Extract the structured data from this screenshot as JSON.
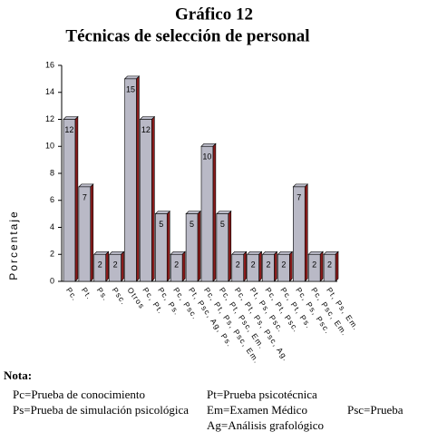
{
  "chart_data": {
    "type": "bar",
    "title": "Gráfico 12",
    "subtitle": "Técnicas de selección de personal",
    "y_label": "Porcentaje",
    "categories": [
      "Pc.",
      "Pt.",
      "Ps.",
      "Psc.",
      "Otros",
      "Pc, Pt.",
      "Pc, Ps.",
      "Pc, Psc.",
      "Pt, Psc, Ag, Ps.",
      "Pc, Pt, Ps, Psc, Em.",
      "Pc, Pt, Psc, Em.",
      "Pc, Pt, Ps, Psc, Ag.",
      "Pt, Ps, Psc.",
      "Pc, Pt, Psc.",
      "Pc, Pt, Ps.",
      "Pc, Ps, Psc.",
      "Pc, Psc, Em.",
      "Pt, Ps, Em."
    ],
    "values": [
      12,
      7,
      2,
      2,
      15,
      12,
      5,
      2,
      5,
      10,
      5,
      2,
      2,
      2,
      2,
      7,
      2,
      2
    ],
    "color": "#b9b9c6",
    "side_color": "#8a1c1c",
    "ylim": [
      0,
      16
    ],
    "yticks": [
      0,
      2,
      4,
      6,
      8,
      10,
      12,
      14,
      16
    ]
  },
  "note": {
    "title": "Nota:",
    "items": [
      "Pc=Prueba de conocimiento",
      "Pt=Prueba psicotécnica",
      "Ps=Prueba de simulación psicológica",
      "Em=Examen Médico",
      "Psc=Prueba",
      "Ag=Análisis grafológico"
    ]
  }
}
